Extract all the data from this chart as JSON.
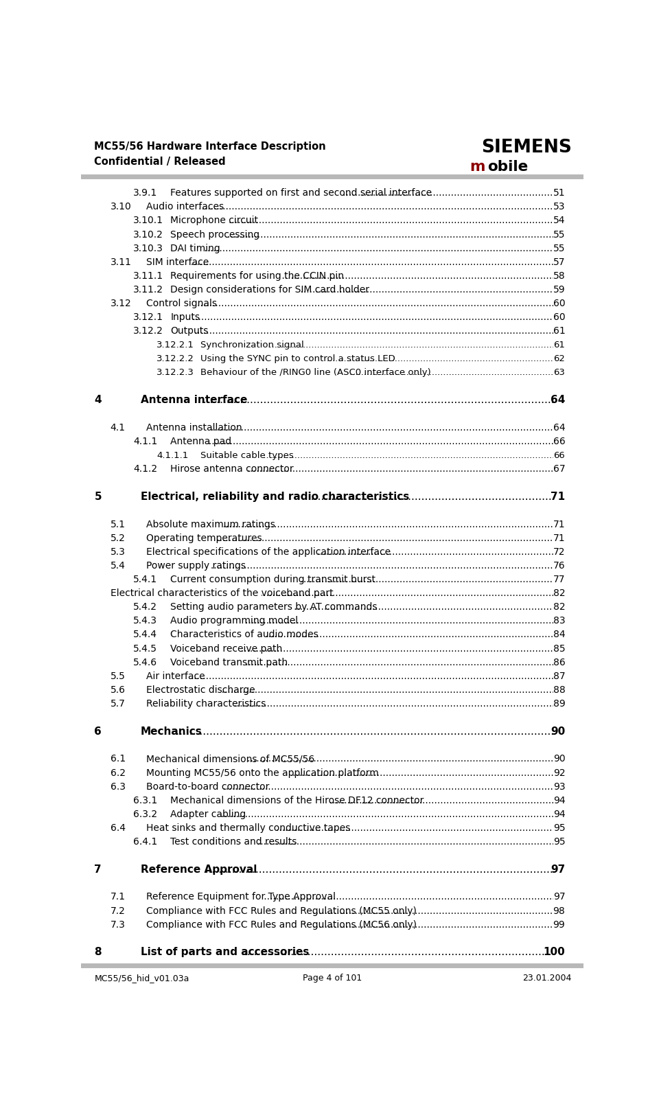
{
  "header_left_line1": "MC55/56 Hardware Interface Description",
  "header_left_line2": "Confidential / Released",
  "header_right_line1": "SIEMENS",
  "header_right_line2_m": "m",
  "header_right_line2_rest": "obile",
  "footer_left": "MC55/56_hid_v01.03a",
  "footer_center": "Page 4 of 101",
  "footer_right": "23.01.2004",
  "toc_entries": [
    {
      "level": 3,
      "number": "3.9.1",
      "title": "Features supported on first and second serial interface",
      "page": "51",
      "bold": false
    },
    {
      "level": 2,
      "number": "3.10",
      "title": "Audio interfaces",
      "page": "53",
      "bold": false
    },
    {
      "level": 3,
      "number": "3.10.1",
      "title": "Microphone circuit",
      "page": "54",
      "bold": false
    },
    {
      "level": 3,
      "number": "3.10.2",
      "title": "Speech processing",
      "page": "55",
      "bold": false
    },
    {
      "level": 3,
      "number": "3.10.3",
      "title": "DAI timing",
      "page": "55",
      "bold": false
    },
    {
      "level": 2,
      "number": "3.11",
      "title": "SIM interface",
      "page": "57",
      "bold": false
    },
    {
      "level": 3,
      "number": "3.11.1",
      "title": "Requirements for using the CCIN pin",
      "page": "58",
      "bold": false
    },
    {
      "level": 3,
      "number": "3.11.2",
      "title": "Design considerations for SIM card holder",
      "page": "59",
      "bold": false
    },
    {
      "level": 2,
      "number": "3.12",
      "title": "Control signals",
      "page": "60",
      "bold": false
    },
    {
      "level": 3,
      "number": "3.12.1",
      "title": "Inputs",
      "page": "60",
      "bold": false
    },
    {
      "level": 3,
      "number": "3.12.2",
      "title": "Outputs",
      "page": "61",
      "bold": false
    },
    {
      "level": 4,
      "number": "3.12.2.1",
      "title": "Synchronization signal",
      "page": "61",
      "bold": false
    },
    {
      "level": 4,
      "number": "3.12.2.2",
      "title": "Using the SYNC pin to control a status LED",
      "page": "62",
      "bold": false
    },
    {
      "level": 4,
      "number": "3.12.2.3",
      "title": "Behaviour of the /RING0 line (ASC0 interface only)",
      "page": "63",
      "bold": false
    },
    {
      "level": 0,
      "number": "",
      "title": "",
      "page": "",
      "bold": false
    },
    {
      "level": 1,
      "number": "4",
      "title": "Antenna interface",
      "page": "64",
      "bold": true
    },
    {
      "level": 0,
      "number": "",
      "title": "",
      "page": "",
      "bold": false
    },
    {
      "level": 2,
      "number": "4.1",
      "title": "Antenna installation",
      "page": "64",
      "bold": false
    },
    {
      "level": 3,
      "number": "4.1.1",
      "title": "Antenna pad",
      "page": "66",
      "bold": false
    },
    {
      "level": 4,
      "number": "4.1.1.1",
      "title": "Suitable cable types",
      "page": "66",
      "bold": false
    },
    {
      "level": 3,
      "number": "4.1.2",
      "title": "Hirose antenna connector",
      "page": "67",
      "bold": false
    },
    {
      "level": 0,
      "number": "",
      "title": "",
      "page": "",
      "bold": false
    },
    {
      "level": 1,
      "number": "5",
      "title": "Electrical, reliability and radio characteristics",
      "page": "71",
      "bold": true
    },
    {
      "level": 0,
      "number": "",
      "title": "",
      "page": "",
      "bold": false
    },
    {
      "level": 2,
      "number": "5.1",
      "title": "Absolute maximum ratings",
      "page": "71",
      "bold": false
    },
    {
      "level": 2,
      "number": "5.2",
      "title": "Operating temperatures",
      "page": "71",
      "bold": false
    },
    {
      "level": 2,
      "number": "5.3",
      "title": "Electrical specifications of the application interface",
      "page": "72",
      "bold": false
    },
    {
      "level": 2,
      "number": "5.4",
      "title": "Power supply ratings",
      "page": "76",
      "bold": false
    },
    {
      "level": 3,
      "number": "5.4.1",
      "title": "Current consumption during transmit burst",
      "page": "77",
      "bold": false
    },
    {
      "level": 2,
      "number": "",
      "title": "Electrical characteristics of the voiceband part",
      "page": "82",
      "bold": false
    },
    {
      "level": 3,
      "number": "5.4.2",
      "title": "Setting audio parameters by AT commands",
      "page": "82",
      "bold": false
    },
    {
      "level": 3,
      "number": "5.4.3",
      "title": "Audio programming model",
      "page": "83",
      "bold": false
    },
    {
      "level": 3,
      "number": "5.4.4",
      "title": "Characteristics of audio modes",
      "page": "84",
      "bold": false
    },
    {
      "level": 3,
      "number": "5.4.5",
      "title": "Voiceband receive path",
      "page": "85",
      "bold": false
    },
    {
      "level": 3,
      "number": "5.4.6",
      "title": "Voiceband transmit path",
      "page": "86",
      "bold": false
    },
    {
      "level": 2,
      "number": "5.5",
      "title": "Air interface",
      "page": "87",
      "bold": false
    },
    {
      "level": 2,
      "number": "5.6",
      "title": "Electrostatic discharge",
      "page": "88",
      "bold": false
    },
    {
      "level": 2,
      "number": "5.7",
      "title": "Reliability characteristics",
      "page": "89",
      "bold": false
    },
    {
      "level": 0,
      "number": "",
      "title": "",
      "page": "",
      "bold": false
    },
    {
      "level": 1,
      "number": "6",
      "title": "Mechanics",
      "page": "90",
      "bold": true
    },
    {
      "level": 0,
      "number": "",
      "title": "",
      "page": "",
      "bold": false
    },
    {
      "level": 2,
      "number": "6.1",
      "title": "Mechanical dimensions of MC55/56",
      "page": "90",
      "bold": false
    },
    {
      "level": 2,
      "number": "6.2",
      "title": "Mounting MC55/56 onto the application platform",
      "page": "92",
      "bold": false
    },
    {
      "level": 2,
      "number": "6.3",
      "title": "Board-to-board connector",
      "page": "93",
      "bold": false
    },
    {
      "level": 3,
      "number": "6.3.1",
      "title": "Mechanical dimensions of the Hirose DF12 connector",
      "page": "94",
      "bold": false
    },
    {
      "level": 3,
      "number": "6.3.2",
      "title": "Adapter cabling",
      "page": "94",
      "bold": false
    },
    {
      "level": 2,
      "number": "6.4",
      "title": "Heat sinks and thermally conductive tapes",
      "page": "95",
      "bold": false
    },
    {
      "level": 3,
      "number": "6.4.1",
      "title": "Test conditions and results",
      "page": "95",
      "bold": false
    },
    {
      "level": 0,
      "number": "",
      "title": "",
      "page": "",
      "bold": false
    },
    {
      "level": 1,
      "number": "7",
      "title": "Reference Approval",
      "page": "97",
      "bold": true
    },
    {
      "level": 0,
      "number": "",
      "title": "",
      "page": "",
      "bold": false
    },
    {
      "level": 2,
      "number": "7.1",
      "title": "Reference Equipment for Type Approval",
      "page": "97",
      "bold": false
    },
    {
      "level": 2,
      "number": "7.2",
      "title": "Compliance with FCC Rules and Regulations (MC55 only)",
      "page": "98",
      "bold": false
    },
    {
      "level": 2,
      "number": "7.3",
      "title": "Compliance with FCC Rules and Regulations (MC56 only)",
      "page": "99",
      "bold": false
    },
    {
      "level": 0,
      "number": "",
      "title": "",
      "page": "",
      "bold": false
    },
    {
      "level": 1,
      "number": "8",
      "title": "List of parts and accessories",
      "page": "100",
      "bold": true
    }
  ],
  "bg_color": "#ffffff",
  "text_color": "#000000",
  "header_line_color": "#b8b8b8",
  "siemens_color": "#000000",
  "mobile_m_color": "#8b0000"
}
